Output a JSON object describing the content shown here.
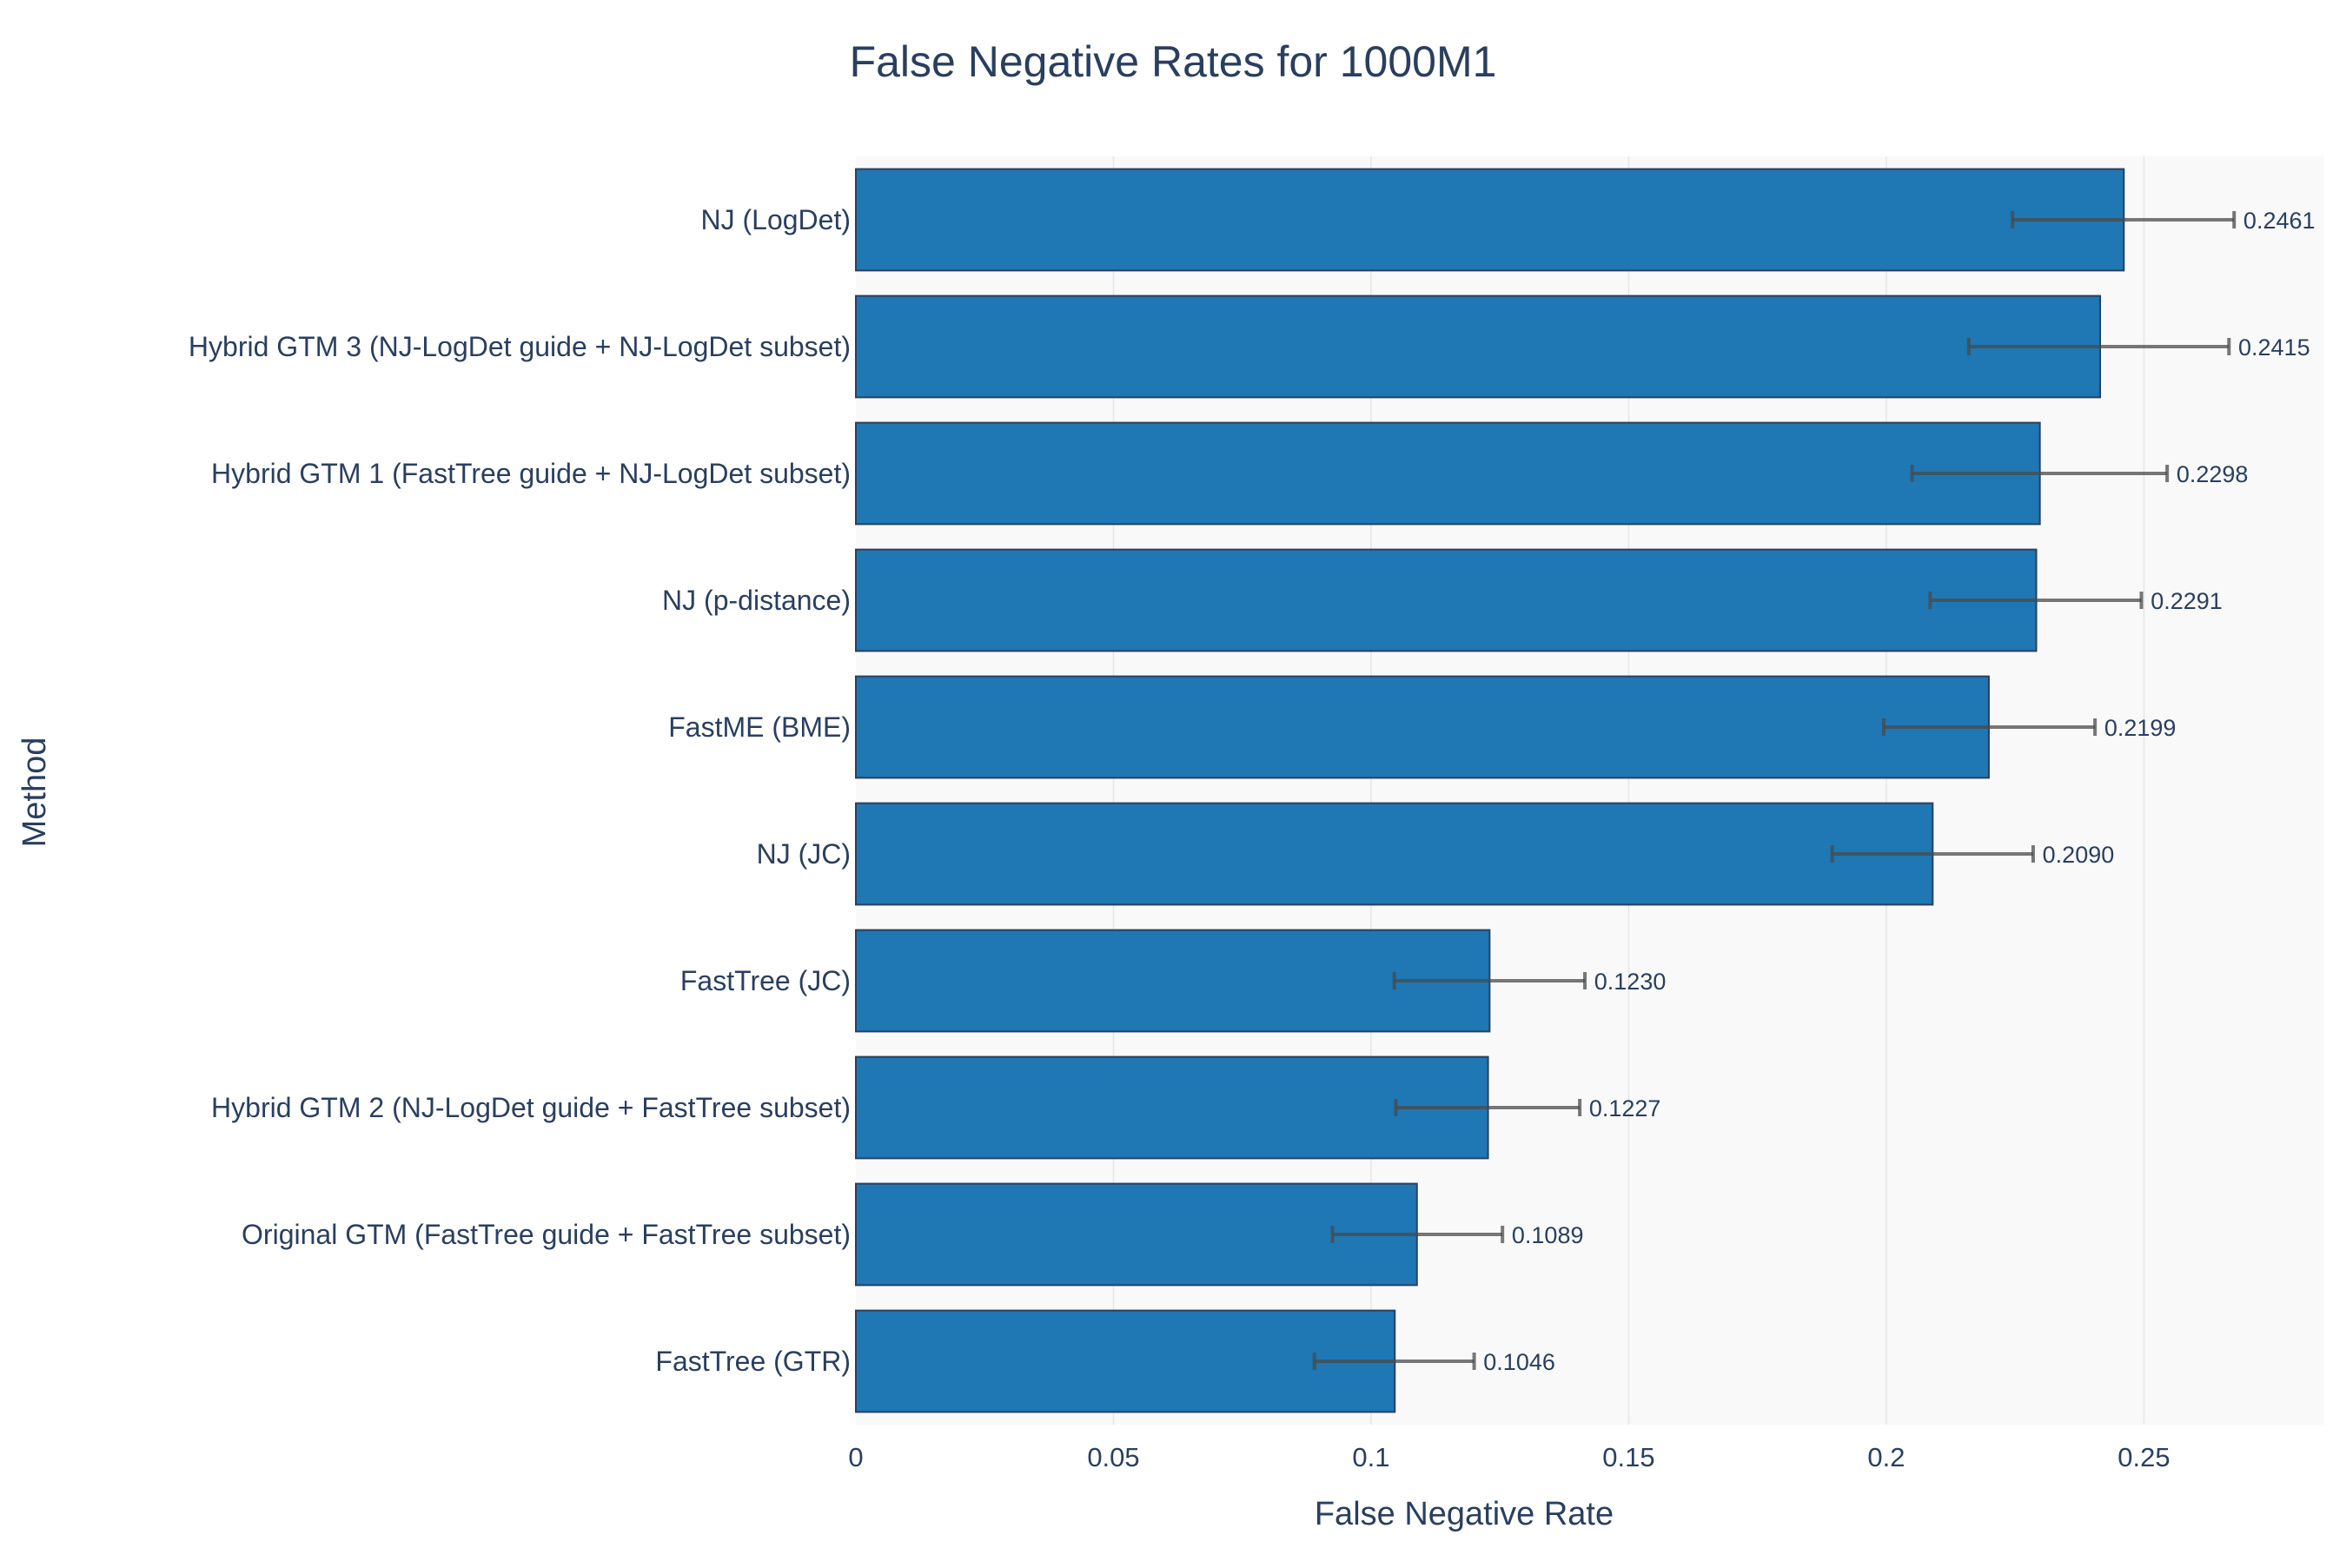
{
  "chart_data": {
    "type": "bar",
    "orientation": "horizontal",
    "title": "False Negative Rates for 1000M1",
    "xlabel": "False Negative Rate",
    "ylabel": "Method",
    "xlim": [
      0,
      0.285
    ],
    "xticks": [
      0,
      0.05,
      0.1,
      0.15,
      0.2,
      0.25
    ],
    "xtick_labels": [
      "0",
      "0.05",
      "0.1",
      "0.15",
      "0.2",
      "0.25"
    ],
    "grid": "vertical",
    "colors": {
      "bar": "#1f77b4",
      "bar_outline": "#2a3f5f",
      "plot_bg": "#f9f9f9",
      "error_bar": "#4a4a4a"
    },
    "categories": [
      "NJ (LogDet)",
      "Hybrid GTM 3 (NJ-LogDet guide + NJ-LogDet subset)",
      "Hybrid GTM 1 (FastTree guide + NJ-LogDet subset)",
      "NJ (p-distance)",
      "FastME (BME)",
      "NJ (JC)",
      "FastTree (JC)",
      "Hybrid GTM 2 (NJ-LogDet guide + FastTree subset)",
      "Original GTM (FastTree guide + FastTree subset)",
      "FastTree (GTR)"
    ],
    "values": [
      0.2461,
      0.2415,
      0.2298,
      0.2291,
      0.2199,
      0.209,
      0.123,
      0.1227,
      0.1089,
      0.1046
    ],
    "value_labels": [
      "0.2461",
      "0.2415",
      "0.2298",
      "0.2291",
      "0.2199",
      "0.2090",
      "0.1230",
      "0.1227",
      "0.1089",
      "0.1046"
    ],
    "error_low": [
      0.2245,
      0.216,
      0.205,
      0.2085,
      0.1995,
      0.1895,
      0.1045,
      0.1048,
      0.0925,
      0.089
    ],
    "error_high": [
      0.2675,
      0.2665,
      0.2545,
      0.2495,
      0.2405,
      0.2285,
      0.1415,
      0.1405,
      0.1255,
      0.12
    ]
  }
}
